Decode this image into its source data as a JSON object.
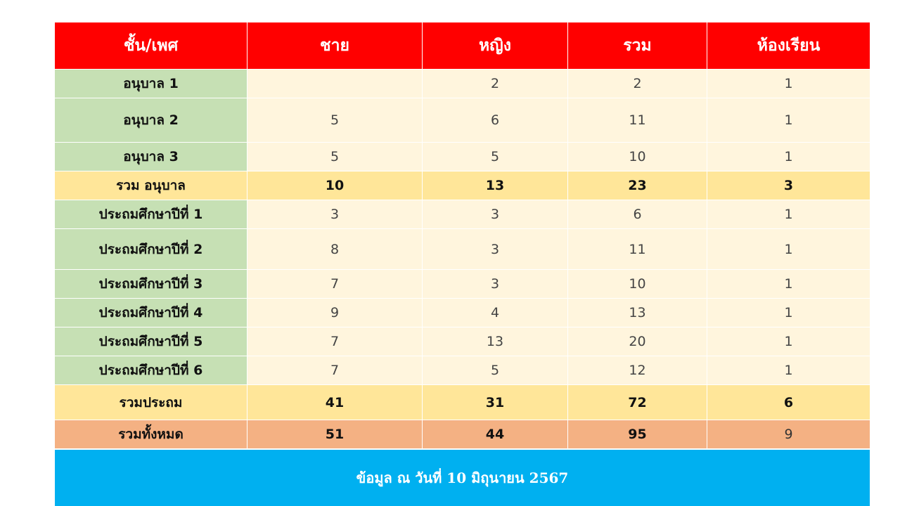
{
  "header": [
    "ชั้น/เพศ",
    "ชาย",
    "หญิง",
    "รวม",
    "ห้องเรียน"
  ],
  "rows": [
    {
      "label": "อนุบาล 1",
      "male": "",
      "female": "2",
      "total": "2",
      "rooms": "1"
    },
    {
      "label": "อนุบาล 2",
      "male": "5",
      "female": "6",
      "total": "11",
      "rooms": "1"
    },
    {
      "label": "อนุบาล 3",
      "male": "5",
      "female": "5",
      "total": "10",
      "rooms": "1"
    },
    {
      "label": "รวม อนุบาล",
      "male": "10",
      "female": "13",
      "total": "23",
      "rooms": "3"
    },
    {
      "label": "ประถมศึกษาปีที่ 1",
      "male": "3",
      "female": "3",
      "total": "6",
      "rooms": "1"
    },
    {
      "label": "ประถมศึกษาปีที่ 2",
      "male": "8",
      "female": "3",
      "total": "11",
      "rooms": "1"
    },
    {
      "label": "ประถมศึกษาปีที่ 3",
      "male": "7",
      "female": "3",
      "total": "10",
      "rooms": "1"
    },
    {
      "label": "ประถมศึกษาปีที่ 4",
      "male": "9",
      "female": "4",
      "total": "13",
      "rooms": "1"
    },
    {
      "label": "ประถมศึกษาปีที่ 5",
      "male": "7",
      "female": "13",
      "total": "20",
      "rooms": "1"
    },
    {
      "label": "ประถมศึกษาปีที่ 6",
      "male": "7",
      "female": "5",
      "total": "12",
      "rooms": "1"
    },
    {
      "label": "รวมประถม",
      "male": "41",
      "female": "31",
      "total": "72",
      "rooms": "6"
    },
    {
      "label": "รวมทั้งหมด",
      "male": "51",
      "female": "44",
      "total": "95",
      "rooms": "9"
    }
  ],
  "footer": "ข้อมูล ณ วันที่ 10 มิถุนายน 2567",
  "colors": {
    "header": "#ff0000",
    "label": "#c6e0b4",
    "value": "#fff5dd",
    "subtotal": "#ffe699",
    "grand_total": "#f4b183",
    "footer": "#00b0f0"
  }
}
